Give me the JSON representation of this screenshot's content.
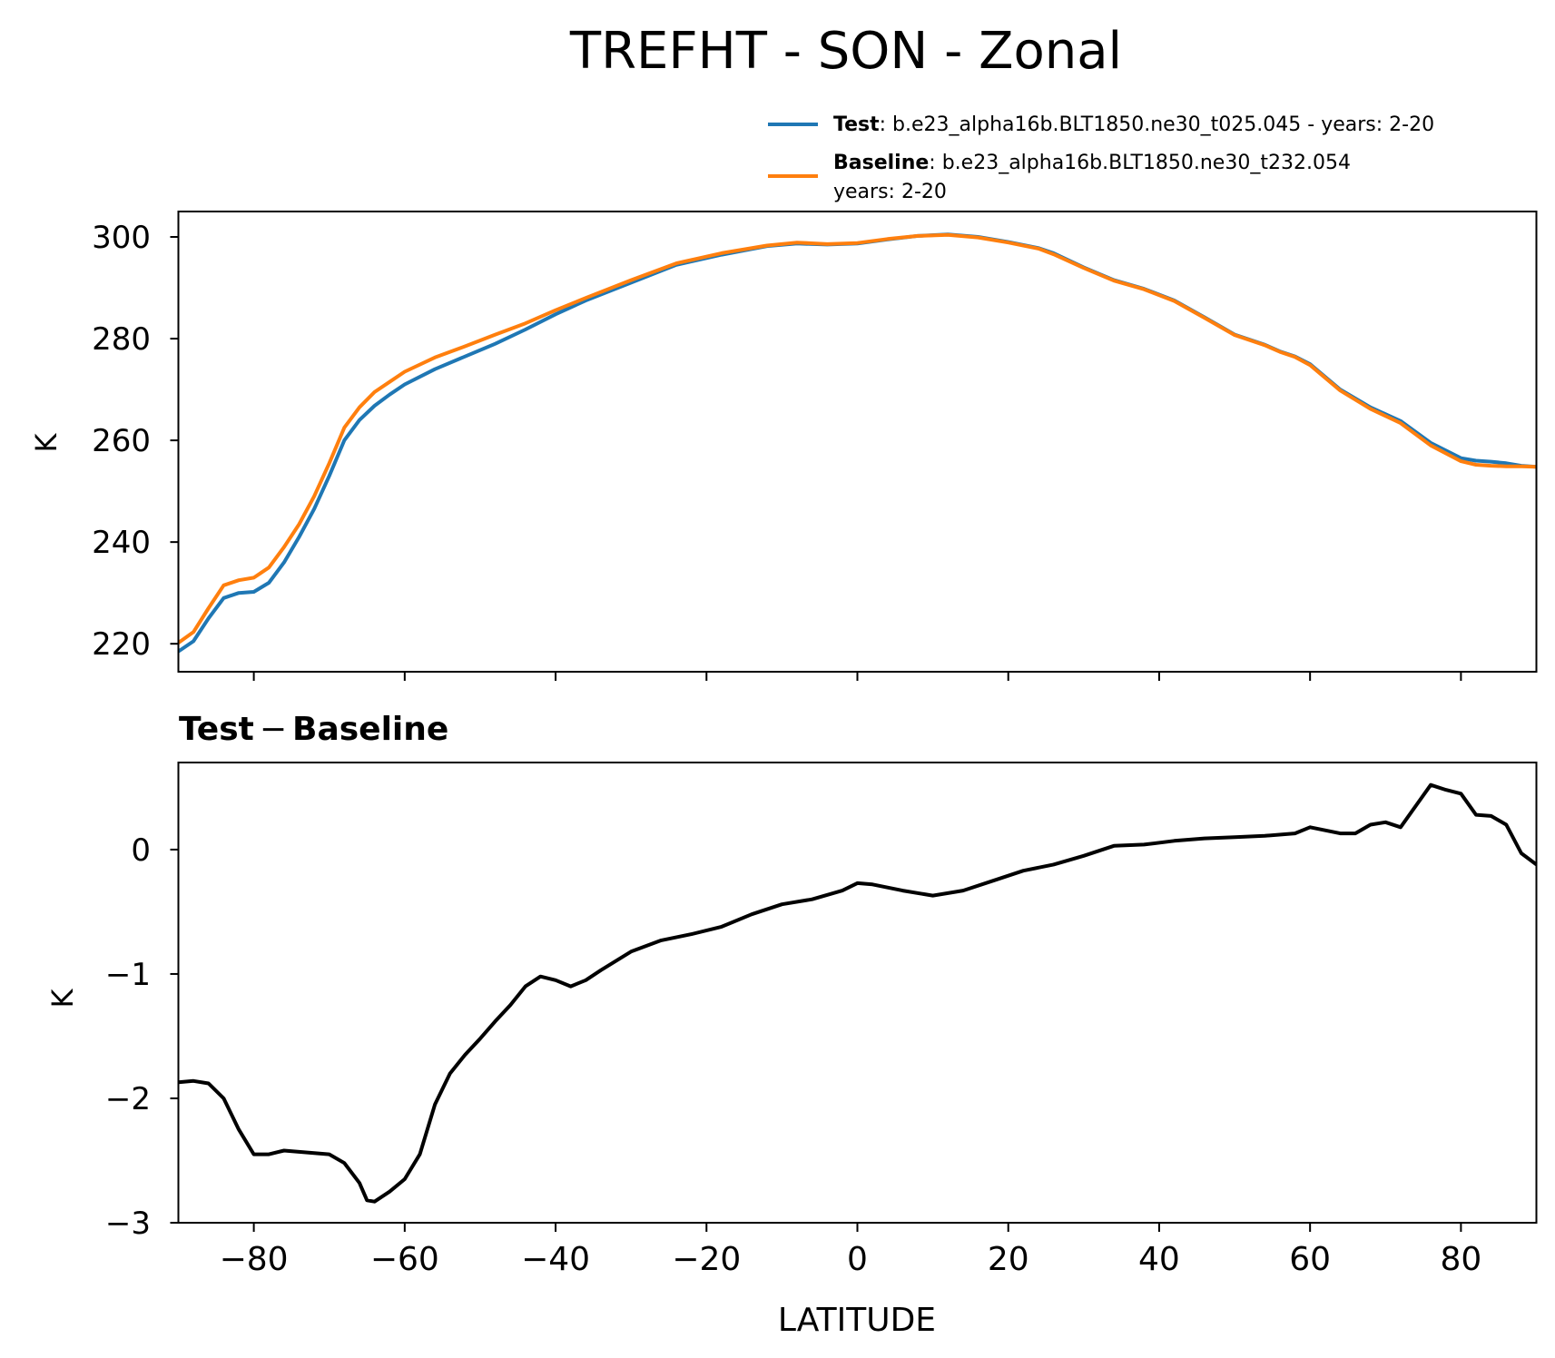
{
  "title": "TREFHT - SON - Zonal",
  "legend": {
    "test_bold": "Test",
    "test_rest": ": b.e23_alpha16b.BLT1850.ne30_t025.045 - years: 2-20",
    "baseline_bold": "Baseline",
    "baseline_rest": ": b.e23_alpha16b.BLT1850.ne30_t232.054",
    "baseline_line2": "years: 2-20"
  },
  "diff_title": {
    "bold1": "Test",
    "dash": "−",
    "bold2": "Baseline"
  },
  "colors": {
    "test": "#1f77b4",
    "baseline": "#ff7f0e",
    "diff": "#000000"
  },
  "chart_data": [
    {
      "type": "line",
      "title": "TREFHT - SON - Zonal",
      "xlabel": "",
      "ylabel": "K",
      "xlim": [
        -90,
        90
      ],
      "ylim": [
        214.5,
        305
      ],
      "yticks": [
        220,
        240,
        260,
        280,
        300
      ],
      "ytick_labels": [
        "220",
        "240",
        "260",
        "280",
        "300"
      ],
      "xticks": [
        -80,
        -60,
        -40,
        -20,
        0,
        20,
        40,
        60,
        80
      ],
      "grid": false,
      "legend_position": "above-right",
      "x": [
        -90,
        -88,
        -86,
        -84,
        -82,
        -80,
        -78,
        -76,
        -74,
        -72,
        -70,
        -68,
        -66,
        -64,
        -62,
        -60,
        -56,
        -52,
        -48,
        -44,
        -40,
        -36,
        -30,
        -24,
        -18,
        -12,
        -8,
        -4,
        0,
        4,
        8,
        12,
        16,
        20,
        24,
        26,
        30,
        34,
        38,
        42,
        46,
        50,
        54,
        56,
        58,
        60,
        64,
        68,
        72,
        76,
        80,
        82,
        84,
        86,
        88,
        90
      ],
      "series": [
        {
          "name": "Test",
          "values": [
            218.5,
            220.5,
            225.0,
            229.0,
            230.0,
            230.2,
            232.0,
            236.0,
            241.0,
            246.5,
            253.0,
            260.0,
            264.0,
            266.8,
            269.0,
            271.0,
            274.0,
            276.5,
            279.0,
            281.8,
            284.8,
            287.5,
            291.0,
            294.5,
            296.5,
            298.2,
            298.7,
            298.5,
            298.7,
            299.5,
            300.2,
            300.5,
            300.0,
            299.0,
            297.8,
            296.8,
            294.0,
            291.5,
            289.8,
            287.5,
            284.2,
            280.8,
            278.8,
            277.5,
            276.5,
            275.0,
            270.0,
            266.5,
            263.8,
            259.5,
            256.5,
            256.0,
            255.8,
            255.5,
            255.0,
            254.8
          ]
        },
        {
          "name": "Baseline",
          "values": [
            220.2,
            222.3,
            227.0,
            231.5,
            232.5,
            233.0,
            235.0,
            239.0,
            243.5,
            249.0,
            255.5,
            262.5,
            266.5,
            269.5,
            271.5,
            273.5,
            276.3,
            278.5,
            280.8,
            283.0,
            285.6,
            288.0,
            291.5,
            294.8,
            296.8,
            298.3,
            298.9,
            298.6,
            298.8,
            299.6,
            300.2,
            300.4,
            299.9,
            298.9,
            297.7,
            296.6,
            293.9,
            291.4,
            289.7,
            287.4,
            284.1,
            280.7,
            278.7,
            277.4,
            276.4,
            274.8,
            269.8,
            266.2,
            263.4,
            259.0,
            255.9,
            255.2,
            255.0,
            254.9,
            254.9,
            254.8
          ]
        }
      ]
    },
    {
      "type": "line",
      "title": "Test − Baseline",
      "xlabel": "LATITUDE",
      "ylabel": "K",
      "xlim": [
        -90,
        90
      ],
      "ylim": [
        -3,
        0.7
      ],
      "yticks": [
        -3,
        -2,
        -1,
        0
      ],
      "ytick_labels": [
        "−3",
        "−2",
        "−1",
        "0"
      ],
      "xticks": [
        -80,
        -60,
        -40,
        -20,
        0,
        20,
        40,
        60,
        80
      ],
      "xtick_labels": [
        "−80",
        "−60",
        "−40",
        "−20",
        "0",
        "20",
        "40",
        "60",
        "80"
      ],
      "grid": false,
      "x": [
        -90,
        -88,
        -86,
        -84,
        -82,
        -80,
        -78,
        -76,
        -74,
        -72,
        -70,
        -68,
        -66,
        -65,
        -64,
        -62,
        -60,
        -58,
        -56,
        -54,
        -52,
        -50,
        -48,
        -46,
        -44,
        -42,
        -40,
        -38,
        -36,
        -34,
        -30,
        -26,
        -22,
        -18,
        -14,
        -10,
        -6,
        -2,
        0,
        2,
        6,
        10,
        14,
        18,
        22,
        26,
        30,
        34,
        38,
        42,
        46,
        50,
        54,
        58,
        60,
        64,
        66,
        68,
        70,
        72,
        74,
        76,
        78,
        80,
        82,
        84,
        86,
        88,
        90
      ],
      "series": [
        {
          "name": "",
          "values": [
            -1.87,
            -1.86,
            -1.88,
            -2.0,
            -2.25,
            -2.45,
            -2.45,
            -2.42,
            -2.43,
            -2.44,
            -2.45,
            -2.52,
            -2.68,
            -2.82,
            -2.83,
            -2.75,
            -2.65,
            -2.45,
            -2.05,
            -1.8,
            -1.65,
            -1.52,
            -1.38,
            -1.25,
            -1.1,
            -1.02,
            -1.05,
            -1.1,
            -1.05,
            -0.97,
            -0.82,
            -0.73,
            -0.68,
            -0.62,
            -0.52,
            -0.44,
            -0.4,
            -0.33,
            -0.27,
            -0.28,
            -0.33,
            -0.37,
            -0.33,
            -0.25,
            -0.17,
            -0.12,
            -0.05,
            0.03,
            0.04,
            0.07,
            0.09,
            0.1,
            0.11,
            0.13,
            0.18,
            0.13,
            0.13,
            0.2,
            0.22,
            0.18,
            0.35,
            0.52,
            0.48,
            0.45,
            0.28,
            0.27,
            0.2,
            -0.03,
            -0.12
          ]
        }
      ]
    }
  ]
}
